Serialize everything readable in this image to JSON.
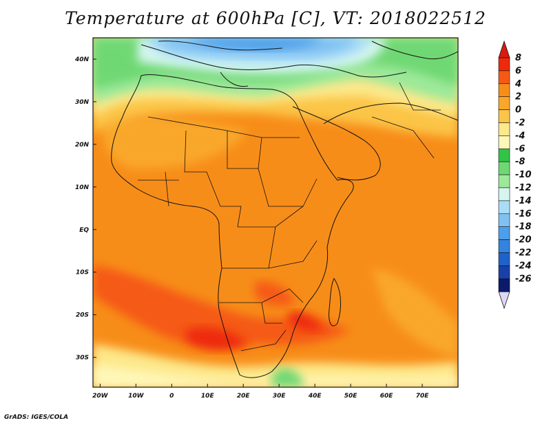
{
  "title": "Temperature at 600hPa [C], VT: 2018022512",
  "footer": "GrADS: IGES/COLA",
  "map": {
    "projection": "lat-lon",
    "lon_range": [
      -22,
      80
    ],
    "lat_range": [
      -37,
      45
    ],
    "lat_ticks": [
      {
        "value": 40,
        "label": "40N"
      },
      {
        "value": 30,
        "label": "30N"
      },
      {
        "value": 20,
        "label": "20N"
      },
      {
        "value": 10,
        "label": "10N"
      },
      {
        "value": 0,
        "label": "EQ"
      },
      {
        "value": -10,
        "label": "10S"
      },
      {
        "value": -20,
        "label": "20S"
      },
      {
        "value": -30,
        "label": "30S"
      }
    ],
    "lon_ticks": [
      {
        "value": -20,
        "label": "20W"
      },
      {
        "value": -10,
        "label": "10W"
      },
      {
        "value": 0,
        "label": "0"
      },
      {
        "value": 10,
        "label": "10E"
      },
      {
        "value": 20,
        "label": "20E"
      },
      {
        "value": 30,
        "label": "30E"
      },
      {
        "value": 40,
        "label": "40E"
      },
      {
        "value": 50,
        "label": "50E"
      },
      {
        "value": 60,
        "label": "60E"
      },
      {
        "value": 70,
        "label": "70E"
      }
    ]
  },
  "colorbar": {
    "levels": [
      {
        "label": "8",
        "color": "#ee2a0c"
      },
      {
        "label": "6",
        "color": "#f55a15"
      },
      {
        "label": "4",
        "color": "#f78d19"
      },
      {
        "label": "2",
        "color": "#f9a72a"
      },
      {
        "label": "0",
        "color": "#fbc547"
      },
      {
        "label": "-2",
        "color": "#fde88a"
      },
      {
        "label": "-4",
        "color": "#fff7b8"
      },
      {
        "label": "-6",
        "color": "#33c447"
      },
      {
        "label": "-8",
        "color": "#6fd873"
      },
      {
        "label": "-10",
        "color": "#9de99a"
      },
      {
        "label": "-12",
        "color": "#d4f6ee"
      },
      {
        "label": "-14",
        "color": "#a9dcf7"
      },
      {
        "label": "-16",
        "color": "#80c1f2"
      },
      {
        "label": "-18",
        "color": "#4d9fe9"
      },
      {
        "label": "-20",
        "color": "#3383e0"
      },
      {
        "label": "-22",
        "color": "#1f63ca"
      },
      {
        "label": "-24",
        "color": "#1840a8"
      },
      {
        "label": "-26",
        "color": "#0c1a6b"
      }
    ],
    "top_triangle_color": "#d81d10",
    "bottom_triangle_color": "#dcd8f5"
  }
}
